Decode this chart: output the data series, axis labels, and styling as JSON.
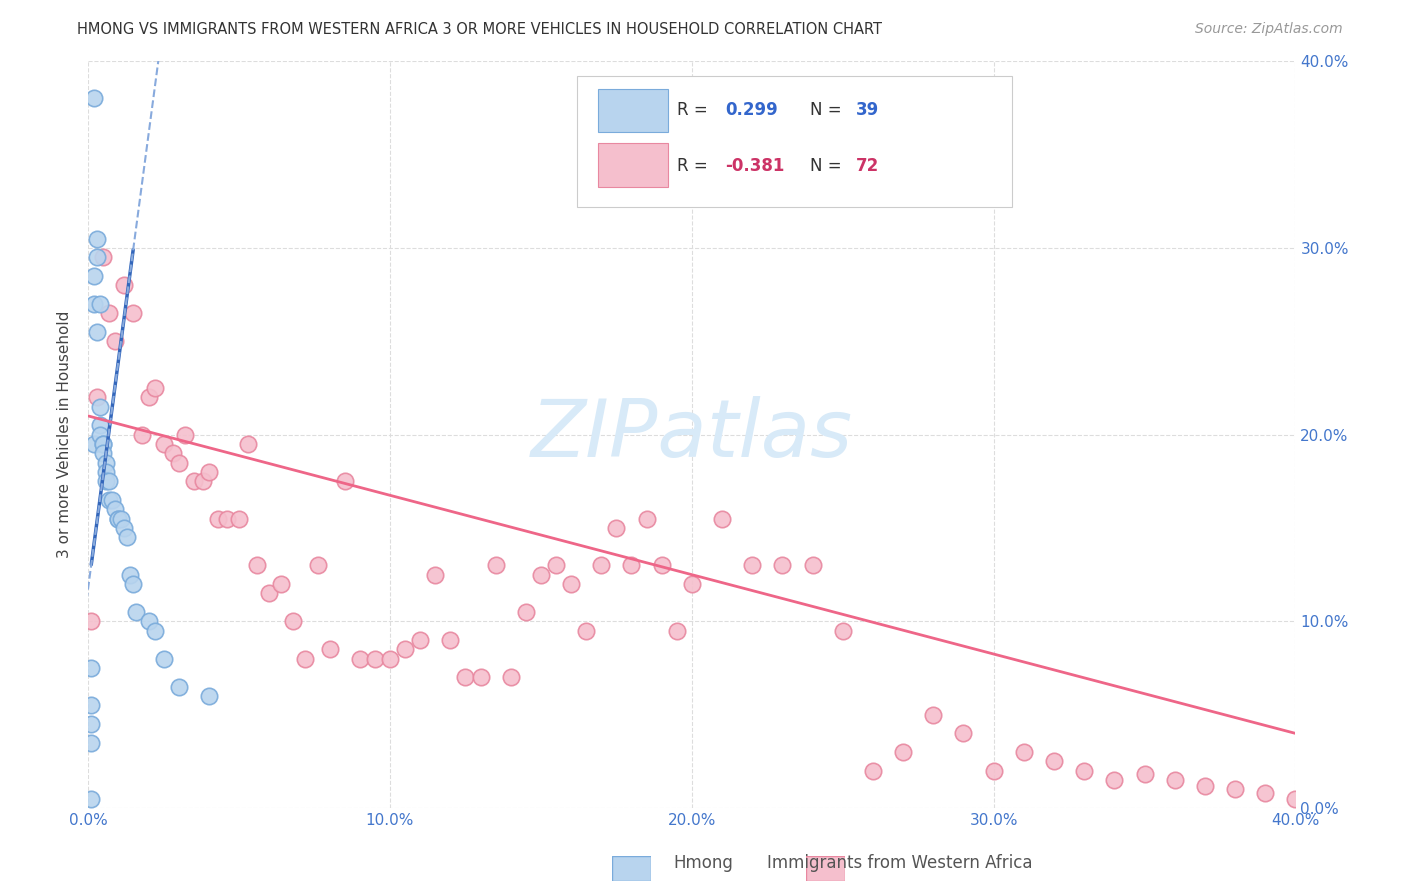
{
  "title": "HMONG VS IMMIGRANTS FROM WESTERN AFRICA 3 OR MORE VEHICLES IN HOUSEHOLD CORRELATION CHART",
  "source": "Source: ZipAtlas.com",
  "ylabel": "3 or more Vehicles in Household",
  "xlim": [
    0.0,
    0.4
  ],
  "ylim": [
    0.0,
    0.4
  ],
  "xticks": [
    0.0,
    0.1,
    0.2,
    0.3,
    0.4
  ],
  "yticks": [
    0.0,
    0.1,
    0.2,
    0.3,
    0.4
  ],
  "xticklabels": [
    "0.0%",
    "10.0%",
    "20.0%",
    "30.0%",
    "40.0%"
  ],
  "yticklabels_right": [
    "0.0%",
    "10.0%",
    "20.0%",
    "30.0%",
    "40.0%"
  ],
  "background_color": "#ffffff",
  "grid_color": "#dddddd",
  "hmong_color": "#b8d4ee",
  "hmong_edge_color": "#7aabdb",
  "hmong_line_color": "#3366bb",
  "hmong_line_dashed_color": "#88aadd",
  "western_africa_color": "#f5bfcd",
  "western_africa_edge_color": "#e888a0",
  "western_africa_line_color": "#ee6688",
  "legend_color_blue": "#3366cc",
  "legend_color_pink": "#cc3366",
  "watermark_color": "#d8eaf8",
  "hmong_x": [
    0.001,
    0.001,
    0.001,
    0.001,
    0.001,
    0.002,
    0.002,
    0.002,
    0.002,
    0.003,
    0.003,
    0.003,
    0.004,
    0.004,
    0.004,
    0.004,
    0.005,
    0.005,
    0.005,
    0.006,
    0.006,
    0.006,
    0.007,
    0.007,
    0.008,
    0.009,
    0.01,
    0.01,
    0.011,
    0.012,
    0.013,
    0.014,
    0.015,
    0.016,
    0.02,
    0.022,
    0.025,
    0.03,
    0.04
  ],
  "hmong_y": [
    0.075,
    0.055,
    0.045,
    0.035,
    0.005,
    0.38,
    0.285,
    0.27,
    0.195,
    0.305,
    0.295,
    0.255,
    0.27,
    0.215,
    0.205,
    0.2,
    0.195,
    0.195,
    0.19,
    0.185,
    0.18,
    0.175,
    0.175,
    0.165,
    0.165,
    0.16,
    0.155,
    0.155,
    0.155,
    0.15,
    0.145,
    0.125,
    0.12,
    0.105,
    0.1,
    0.095,
    0.08,
    0.065,
    0.06
  ],
  "wa_x": [
    0.001,
    0.003,
    0.005,
    0.007,
    0.009,
    0.012,
    0.015,
    0.018,
    0.02,
    0.022,
    0.025,
    0.028,
    0.03,
    0.032,
    0.035,
    0.038,
    0.04,
    0.043,
    0.046,
    0.05,
    0.053,
    0.056,
    0.06,
    0.064,
    0.068,
    0.072,
    0.076,
    0.08,
    0.085,
    0.09,
    0.095,
    0.1,
    0.105,
    0.11,
    0.115,
    0.12,
    0.125,
    0.13,
    0.135,
    0.14,
    0.145,
    0.15,
    0.155,
    0.16,
    0.165,
    0.17,
    0.175,
    0.18,
    0.185,
    0.19,
    0.195,
    0.2,
    0.21,
    0.22,
    0.23,
    0.24,
    0.25,
    0.26,
    0.27,
    0.28,
    0.29,
    0.3,
    0.31,
    0.32,
    0.33,
    0.34,
    0.35,
    0.36,
    0.37,
    0.38,
    0.39,
    0.4
  ],
  "wa_y": [
    0.1,
    0.22,
    0.295,
    0.265,
    0.25,
    0.28,
    0.265,
    0.2,
    0.22,
    0.225,
    0.195,
    0.19,
    0.185,
    0.2,
    0.175,
    0.175,
    0.18,
    0.155,
    0.155,
    0.155,
    0.195,
    0.13,
    0.115,
    0.12,
    0.1,
    0.08,
    0.13,
    0.085,
    0.175,
    0.08,
    0.08,
    0.08,
    0.085,
    0.09,
    0.125,
    0.09,
    0.07,
    0.07,
    0.13,
    0.07,
    0.105,
    0.125,
    0.13,
    0.12,
    0.095,
    0.13,
    0.15,
    0.13,
    0.155,
    0.13,
    0.095,
    0.12,
    0.155,
    0.13,
    0.13,
    0.13,
    0.095,
    0.02,
    0.03,
    0.05,
    0.04,
    0.02,
    0.03,
    0.025,
    0.02,
    0.015,
    0.018,
    0.015,
    0.012,
    0.01,
    0.008,
    0.005
  ]
}
